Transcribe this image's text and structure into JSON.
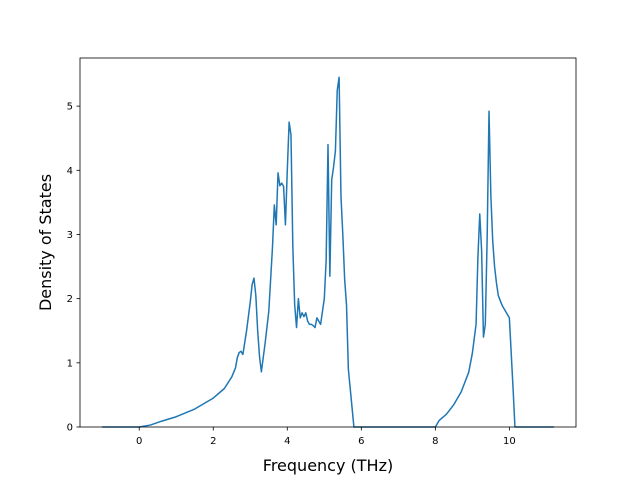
{
  "chart_data": {
    "type": "line",
    "title": "",
    "xlabel": "Frequency (THz)",
    "ylabel": "Density of States",
    "xlim": [
      -1.6,
      11.8
    ],
    "ylim": [
      0,
      5.75
    ],
    "xticks": [
      0,
      2,
      4,
      6,
      8,
      10
    ],
    "yticks": [
      0,
      1,
      2,
      3,
      4,
      5
    ],
    "grid": false,
    "legend": "none",
    "series": [
      {
        "color": "#1f77b4",
        "x": [
          -1.0,
          0.0,
          0.3,
          0.6,
          1.0,
          1.5,
          2.0,
          2.3,
          2.5,
          2.6,
          2.65,
          2.7,
          2.75,
          2.8,
          2.9,
          3.0,
          3.05,
          3.1,
          3.15,
          3.2,
          3.25,
          3.3,
          3.4,
          3.5,
          3.6,
          3.65,
          3.7,
          3.75,
          3.8,
          3.85,
          3.9,
          3.95,
          4.0,
          4.05,
          4.1,
          4.15,
          4.2,
          4.25,
          4.3,
          4.35,
          4.4,
          4.45,
          4.5,
          4.55,
          4.6,
          4.65,
          4.7,
          4.75,
          4.8,
          4.9,
          5.0,
          5.05,
          5.1,
          5.15,
          5.2,
          5.25,
          5.3,
          5.35,
          5.4,
          5.45,
          5.5,
          5.55,
          5.6,
          5.65,
          5.8,
          5.9,
          5.95,
          6.0,
          6.5,
          7.0,
          7.5,
          8.0,
          8.1,
          8.3,
          8.5,
          8.7,
          8.9,
          9.0,
          9.1,
          9.15,
          9.2,
          9.25,
          9.3,
          9.35,
          9.4,
          9.45,
          9.5,
          9.55,
          9.6,
          9.65,
          9.7,
          9.8,
          9.9,
          10.0,
          10.1,
          10.15,
          10.2,
          10.5,
          11.0,
          11.2
        ],
        "y": [
          0.0,
          0.0,
          0.03,
          0.09,
          0.16,
          0.28,
          0.45,
          0.6,
          0.78,
          0.92,
          1.08,
          1.16,
          1.18,
          1.13,
          1.5,
          1.95,
          2.22,
          2.32,
          2.05,
          1.5,
          1.1,
          0.86,
          1.3,
          1.8,
          2.8,
          3.46,
          3.15,
          3.96,
          3.76,
          3.8,
          3.75,
          3.15,
          4.0,
          4.75,
          4.55,
          2.8,
          1.9,
          1.55,
          2.0,
          1.7,
          1.78,
          1.72,
          1.78,
          1.65,
          1.6,
          1.6,
          1.58,
          1.55,
          1.7,
          1.6,
          2.0,
          2.6,
          4.4,
          2.35,
          3.85,
          4.05,
          4.3,
          5.25,
          5.45,
          3.6,
          3.0,
          2.3,
          1.9,
          0.9,
          0.0,
          0.0,
          0.0,
          0.0,
          0.0,
          0.0,
          0.0,
          0.0,
          0.1,
          0.2,
          0.35,
          0.55,
          0.85,
          1.15,
          1.6,
          2.65,
          3.32,
          2.75,
          1.4,
          1.6,
          2.95,
          4.92,
          3.6,
          2.9,
          2.5,
          2.25,
          2.05,
          1.9,
          1.8,
          1.7,
          0.6,
          0.0,
          0.0,
          0.0,
          0.0,
          0.0
        ]
      }
    ]
  }
}
